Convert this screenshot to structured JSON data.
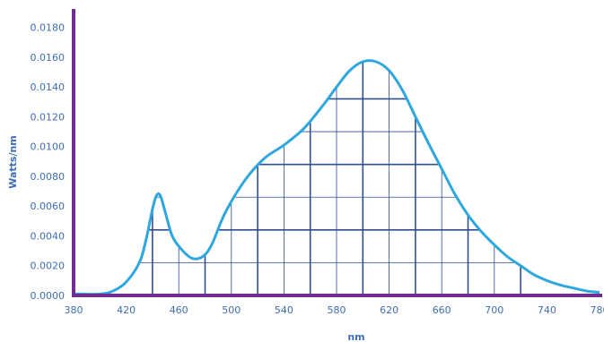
{
  "chart_data": {
    "type": "line",
    "title": "",
    "xlabel": "nm",
    "ylabel": "Watts/nm",
    "xlim": [
      380,
      780
    ],
    "ylim": [
      0,
      0.019
    ],
    "x_ticks": [
      "380",
      "420",
      "460",
      "500",
      "540",
      "580",
      "620",
      "660",
      "700",
      "740",
      "780"
    ],
    "y_ticks": [
      "0.0000",
      "0.0020",
      "0.0040",
      "0.0060",
      "0.0080",
      "0.0100",
      "0.0120",
      "0.0140",
      "0.0160",
      "0.0180"
    ],
    "grid": false,
    "colors": {
      "curve": "#2ea7df",
      "axis": "#6f2d91",
      "grid": "#2f4f8f",
      "tick_text": "#3f6db3"
    },
    "series": [
      {
        "values": [
          [
            380,
            0.0001
          ],
          [
            400,
            0.0001
          ],
          [
            410,
            0.0003
          ],
          [
            420,
            0.0009
          ],
          [
            430,
            0.0022
          ],
          [
            435,
            0.0037
          ],
          [
            440,
            0.0058
          ],
          [
            443,
            0.0067
          ],
          [
            446,
            0.0067
          ],
          [
            450,
            0.0055
          ],
          [
            455,
            0.004
          ],
          [
            462,
            0.0031
          ],
          [
            470,
            0.0025
          ],
          [
            478,
            0.0026
          ],
          [
            485,
            0.0034
          ],
          [
            495,
            0.0055
          ],
          [
            510,
            0.0077
          ],
          [
            525,
            0.0092
          ],
          [
            540,
            0.0101
          ],
          [
            555,
            0.0112
          ],
          [
            570,
            0.0128
          ],
          [
            580,
            0.014
          ],
          [
            590,
            0.0151
          ],
          [
            600,
            0.0157
          ],
          [
            610,
            0.0157
          ],
          [
            620,
            0.0151
          ],
          [
            630,
            0.0138
          ],
          [
            640,
            0.012
          ],
          [
            650,
            0.0102
          ],
          [
            660,
            0.0085
          ],
          [
            670,
            0.0068
          ],
          [
            680,
            0.0054
          ],
          [
            690,
            0.0043
          ],
          [
            700,
            0.0034
          ],
          [
            710,
            0.0026
          ],
          [
            720,
            0.002
          ],
          [
            730,
            0.0014
          ],
          [
            740,
            0.001
          ],
          [
            750,
            0.0007
          ],
          [
            760,
            0.0005
          ],
          [
            770,
            0.0003
          ],
          [
            780,
            0.0002
          ]
        ]
      }
    ]
  }
}
